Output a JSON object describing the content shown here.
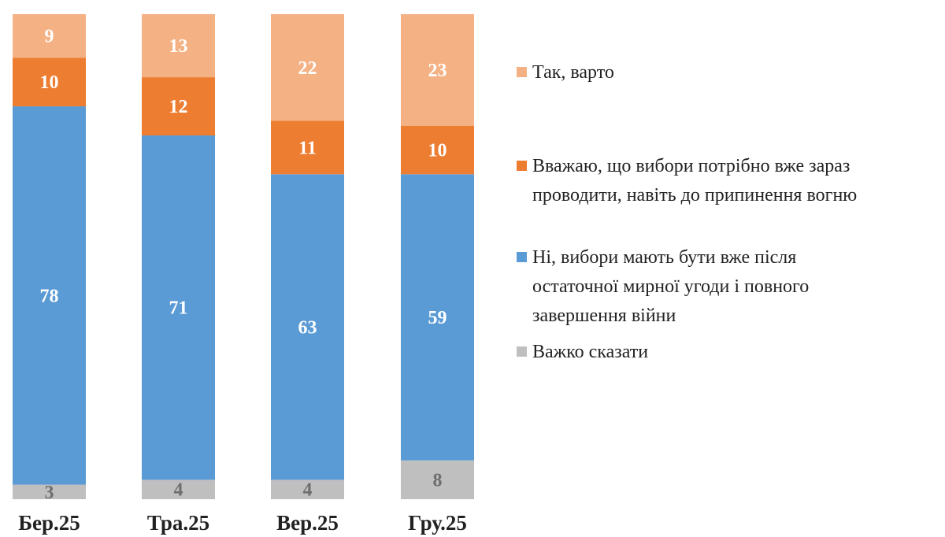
{
  "chart_data": {
    "type": "bar",
    "stacked": true,
    "orientation": "vertical",
    "categories": [
      "Бер.25",
      "Тра.25",
      "Вер.25",
      "Гру.25"
    ],
    "series": [
      {
        "name": "Важко сказати",
        "values": [
          3,
          4,
          4,
          8
        ],
        "color": "#BFBFBF",
        "label_color": "#6E6E6E"
      },
      {
        "name": "Ні, вибори мають бути вже після остаточної мирної угоди і повного завершення війни",
        "values": [
          78,
          71,
          63,
          59
        ],
        "color": "#5B9BD5",
        "label_color": "#FFFFFF"
      },
      {
        "name": "Вважаю, що вибори потрібно вже зараз проводити, навіть до припинення вогню",
        "values": [
          10,
          12,
          11,
          10
        ],
        "color": "#ED7D31",
        "label_color": "#FFFFFF"
      },
      {
        "name": "Так, варто",
        "values": [
          9,
          13,
          22,
          23
        ],
        "color": "#F4B183",
        "label_color": "#FFFFFF"
      }
    ],
    "legend": {
      "position": "right",
      "order": [
        3,
        2,
        1,
        0
      ],
      "entries": [
        {
          "series": 3,
          "lines": [
            "Так, варто"
          ]
        },
        {
          "series": 2,
          "lines": [
            "Вважаю, що вибори потрібно вже зараз",
            "проводити, навіть до припинення вогню"
          ]
        },
        {
          "series": 1,
          "lines": [
            "Ні, вибори мають бути вже після",
            "остаточної мирної угоди і повного",
            "завершення війни"
          ]
        },
        {
          "series": 0,
          "lines": [
            "Важко сказати"
          ]
        }
      ]
    },
    "grid": false,
    "axes_visible": false,
    "title": "",
    "xlabel": "",
    "ylabel": ""
  }
}
